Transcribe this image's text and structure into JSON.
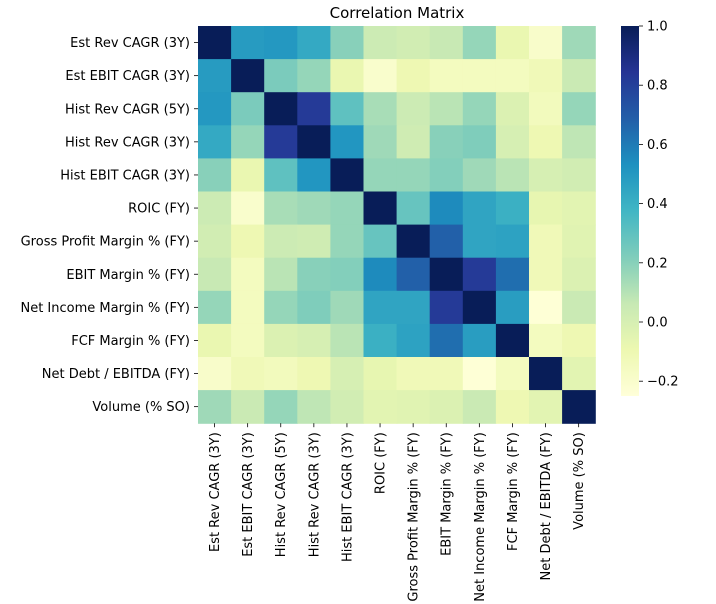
{
  "chart_data": {
    "type": "heatmap",
    "title": "Correlation Matrix",
    "xlabel": "",
    "ylabel": "",
    "labels": [
      "Est Rev CAGR (3Y)",
      "Est EBIT CAGR (3Y)",
      "Hist Rev CAGR (5Y)",
      "Hist Rev CAGR (3Y)",
      "Hist EBIT CAGR (3Y)",
      "ROIC (FY)",
      "Gross Profit Margin % (FY)",
      "EBIT Margin % (FY)",
      "Net Income Margin % (FY)",
      "FCF Margin % (FY)",
      "Net Debt / EBITDA (FY)",
      "Volume (% SO)"
    ],
    "matrix": [
      [
        1.0,
        0.49,
        0.5,
        0.43,
        0.2,
        0.04,
        0.02,
        0.06,
        0.17,
        -0.08,
        -0.19,
        0.15
      ],
      [
        0.49,
        1.0,
        0.23,
        0.17,
        -0.08,
        -0.2,
        -0.1,
        -0.15,
        -0.15,
        -0.15,
        -0.12,
        0.05
      ],
      [
        0.5,
        0.23,
        1.0,
        0.82,
        0.3,
        0.13,
        0.04,
        0.09,
        0.17,
        -0.02,
        -0.14,
        0.17
      ],
      [
        0.43,
        0.17,
        0.82,
        1.0,
        0.51,
        0.15,
        0.03,
        0.2,
        0.22,
        0.0,
        -0.1,
        0.08
      ],
      [
        0.2,
        -0.08,
        0.3,
        0.51,
        1.0,
        0.17,
        0.17,
        0.21,
        0.15,
        0.09,
        0.0,
        0.02
      ],
      [
        0.04,
        -0.2,
        0.13,
        0.15,
        0.17,
        1.0,
        0.28,
        0.55,
        0.45,
        0.4,
        -0.07,
        -0.05
      ],
      [
        0.02,
        -0.1,
        0.04,
        0.03,
        0.17,
        0.28,
        1.0,
        0.68,
        0.45,
        0.46,
        -0.12,
        -0.04
      ],
      [
        0.06,
        -0.15,
        0.09,
        0.2,
        0.21,
        0.55,
        0.68,
        1.0,
        0.82,
        0.64,
        -0.12,
        -0.02
      ],
      [
        0.17,
        -0.15,
        0.17,
        0.22,
        0.15,
        0.45,
        0.45,
        0.82,
        1.0,
        0.48,
        -0.24,
        0.05
      ],
      [
        -0.08,
        -0.15,
        -0.02,
        0.0,
        0.09,
        0.4,
        0.46,
        0.64,
        0.48,
        1.0,
        -0.15,
        -0.1
      ],
      [
        -0.19,
        -0.12,
        -0.14,
        -0.1,
        0.0,
        -0.07,
        -0.12,
        -0.12,
        -0.24,
        -0.15,
        1.0,
        -0.05
      ],
      [
        0.15,
        0.05,
        0.17,
        0.08,
        0.02,
        -0.05,
        -0.04,
        -0.02,
        0.05,
        -0.1,
        -0.05,
        1.0
      ]
    ],
    "colormap": "YlGnBu",
    "vmin": -0.25,
    "vmax": 1.0,
    "colorbar_ticks": [
      1.0,
      0.8,
      0.6,
      0.4,
      0.2,
      0.0,
      -0.2
    ],
    "colorbar_tick_labels": [
      "1.0",
      "0.8",
      "0.6",
      "0.4",
      "0.2",
      "0.0",
      "−0.2"
    ],
    "grid": false,
    "legend": "colorbar-right"
  }
}
